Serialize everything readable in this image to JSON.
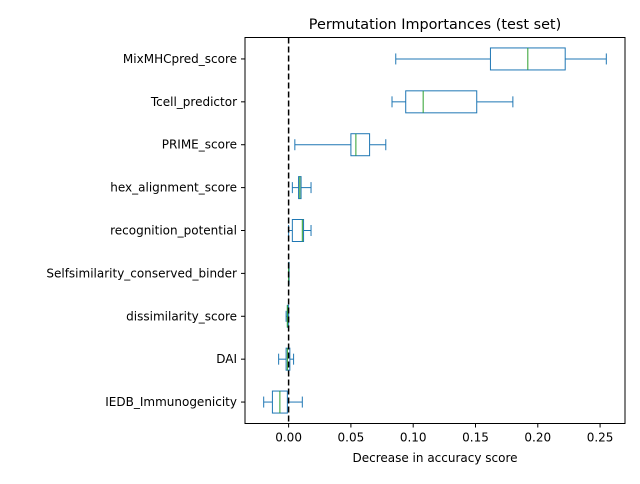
{
  "chart_data": {
    "type": "boxplot",
    "orientation": "horizontal",
    "title": "Permutation Importances (test set)",
    "xlabel": "Decrease in accuracy score",
    "ylabel": "",
    "xlim": [
      -0.035,
      0.27
    ],
    "xticks": [
      "0.00",
      "0.05",
      "0.10",
      "0.15",
      "0.20",
      "0.25"
    ],
    "xtick_values": [
      0.0,
      0.05,
      0.1,
      0.15,
      0.2,
      0.25
    ],
    "reference_line": {
      "x": 0.0,
      "style": "dashed",
      "color": "#000000"
    },
    "colors": {
      "box": "#1f77b4",
      "median": "#2ca02c"
    },
    "grid": false,
    "categories": [
      "MixMHCpred_score",
      "Tcell_predictor",
      "PRIME_score",
      "hex_alignment_score",
      "recognition_potential",
      "Selfsimilarity_conserved_binder",
      "dissimilarity_score",
      "DAI",
      "IEDB_Immunogenicity"
    ],
    "boxes": [
      {
        "whisker_low": 0.086,
        "q1": 0.162,
        "median": 0.192,
        "q3": 0.222,
        "whisker_high": 0.255
      },
      {
        "whisker_low": 0.083,
        "q1": 0.094,
        "median": 0.108,
        "q3": 0.151,
        "whisker_high": 0.18
      },
      {
        "whisker_low": 0.005,
        "q1": 0.05,
        "median": 0.054,
        "q3": 0.065,
        "whisker_high": 0.078
      },
      {
        "whisker_low": 0.003,
        "q1": 0.008,
        "median": 0.009,
        "q3": 0.01,
        "whisker_high": 0.018
      },
      {
        "whisker_low": 0.0,
        "q1": 0.003,
        "median": 0.011,
        "q3": 0.012,
        "whisker_high": 0.018
      },
      {
        "whisker_low": 0.0,
        "q1": 0.0,
        "median": 0.0,
        "q3": 0.0,
        "whisker_high": 0.0
      },
      {
        "whisker_low": -0.002,
        "q1": -0.001,
        "median": -0.001,
        "q3": 0.0,
        "whisker_high": 0.0
      },
      {
        "whisker_low": -0.008,
        "q1": -0.002,
        "median": -0.001,
        "q3": 0.001,
        "whisker_high": 0.004
      },
      {
        "whisker_low": -0.02,
        "q1": -0.013,
        "median": -0.007,
        "q3": -0.001,
        "whisker_high": 0.011
      }
    ]
  }
}
